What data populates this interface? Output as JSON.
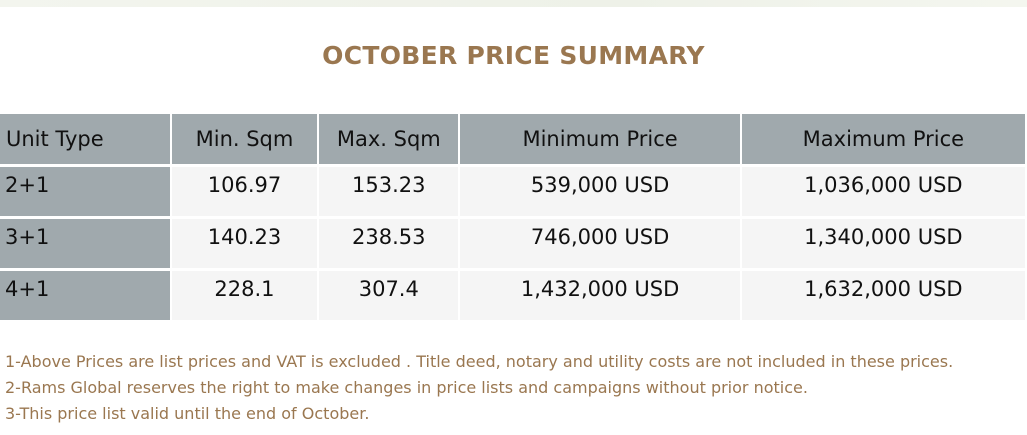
{
  "title": "OCTOBER PRICE SUMMARY",
  "colors": {
    "title": "#9a7750",
    "header_bg": "#a0a9ad",
    "cell_bg": "#f5f5f5",
    "notes": "#9a7750"
  },
  "table": {
    "headers": [
      "Unit Type",
      "Min. Sqm",
      "Max. Sqm",
      "Minimum Price",
      "Maximum Price"
    ],
    "rows": [
      [
        "2+1",
        "106.97",
        "153.23",
        "539,000 USD",
        "1,036,000 USD"
      ],
      [
        "3+1",
        "140.23",
        "238.53",
        "746,000 USD",
        "1,340,000 USD"
      ],
      [
        "4+1",
        "228.1",
        "307.4",
        "1,432,000 USD",
        "1,632,000 USD"
      ]
    ]
  },
  "notes": [
    "1-Above Prices are list prices and VAT is excluded . Title deed, notary and utility costs are not included in these prices.",
    "2-Rams Global reserves the right to make changes in price lists and campaigns without prior notice.",
    "3-This price list valid until the end of October."
  ]
}
